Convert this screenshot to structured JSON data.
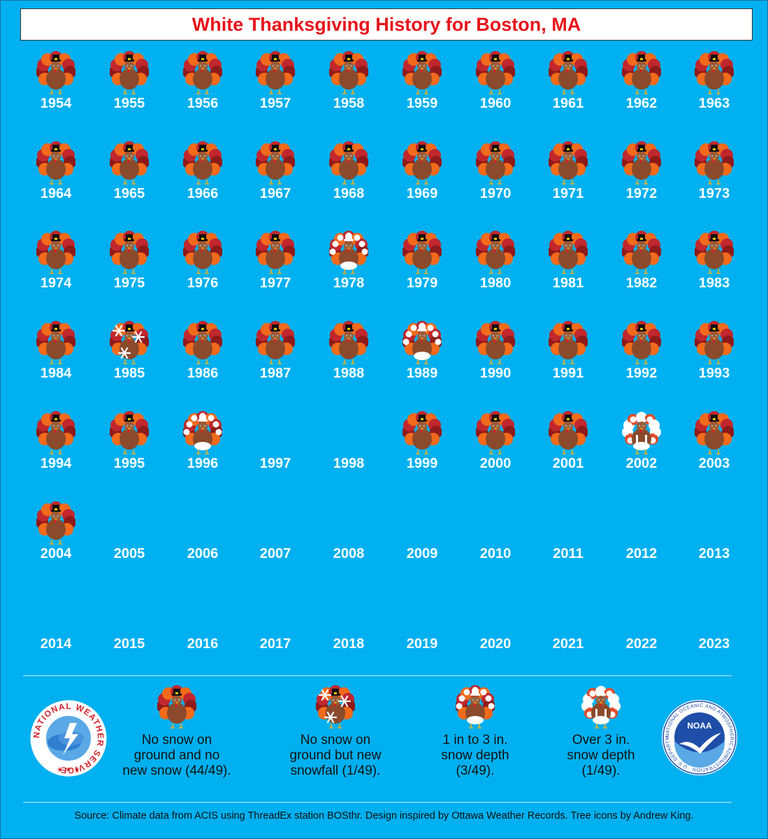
{
  "title": "White Thanksgiving History for Boston, MA",
  "colors": {
    "background": "#00b0f0",
    "title": "#e8131b",
    "year_label": "#ffffff",
    "turkey_body": "#8b4a2b",
    "feather_red": "#c1272d",
    "feather_orange": "#f26a1b",
    "snow": "#ffffff"
  },
  "chart_data": {
    "type": "table",
    "title": "White Thanksgiving History for Boston, MA",
    "categories": [
      {
        "key": "no_snow",
        "label": "No snow on ground and no new snow (44/49).",
        "count": 44,
        "total": 49
      },
      {
        "key": "new_snowfall",
        "label": "No snow on ground but new snowfall (1/49).",
        "count": 1,
        "total": 49
      },
      {
        "key": "depth_1_3",
        "label": "1 in to 3 in. snow depth (3/49).",
        "count": 3,
        "total": 49
      },
      {
        "key": "depth_over_3",
        "label": "Over 3 in. snow depth (1/49).",
        "count": 1,
        "total": 49
      }
    ],
    "years": [
      {
        "year": "1954",
        "status": "no_snow"
      },
      {
        "year": "1955",
        "status": "no_snow"
      },
      {
        "year": "1956",
        "status": "no_snow"
      },
      {
        "year": "1957",
        "status": "no_snow"
      },
      {
        "year": "1958",
        "status": "no_snow"
      },
      {
        "year": "1959",
        "status": "no_snow"
      },
      {
        "year": "1960",
        "status": "no_snow"
      },
      {
        "year": "1961",
        "status": "no_snow"
      },
      {
        "year": "1962",
        "status": "no_snow"
      },
      {
        "year": "1963",
        "status": "no_snow"
      },
      {
        "year": "1964",
        "status": "no_snow"
      },
      {
        "year": "1965",
        "status": "no_snow"
      },
      {
        "year": "1966",
        "status": "no_snow"
      },
      {
        "year": "1967",
        "status": "no_snow"
      },
      {
        "year": "1968",
        "status": "no_snow"
      },
      {
        "year": "1969",
        "status": "no_snow"
      },
      {
        "year": "1970",
        "status": "no_snow"
      },
      {
        "year": "1971",
        "status": "no_snow"
      },
      {
        "year": "1972",
        "status": "no_snow"
      },
      {
        "year": "1973",
        "status": "no_snow"
      },
      {
        "year": "1974",
        "status": "no_snow"
      },
      {
        "year": "1975",
        "status": "no_snow"
      },
      {
        "year": "1976",
        "status": "no_snow"
      },
      {
        "year": "1977",
        "status": "no_snow"
      },
      {
        "year": "1978",
        "status": "depth_1_3"
      },
      {
        "year": "1979",
        "status": "no_snow"
      },
      {
        "year": "1980",
        "status": "no_snow"
      },
      {
        "year": "1981",
        "status": "no_snow"
      },
      {
        "year": "1982",
        "status": "no_snow"
      },
      {
        "year": "1983",
        "status": "no_snow"
      },
      {
        "year": "1984",
        "status": "no_snow"
      },
      {
        "year": "1985",
        "status": "new_snowfall"
      },
      {
        "year": "1986",
        "status": "no_snow"
      },
      {
        "year": "1987",
        "status": "no_snow"
      },
      {
        "year": "1988",
        "status": "no_snow"
      },
      {
        "year": "1989",
        "status": "depth_1_3"
      },
      {
        "year": "1990",
        "status": "no_snow"
      },
      {
        "year": "1991",
        "status": "no_snow"
      },
      {
        "year": "1992",
        "status": "no_snow"
      },
      {
        "year": "1993",
        "status": "no_snow"
      },
      {
        "year": "1994",
        "status": "no_snow"
      },
      {
        "year": "1995",
        "status": "no_snow"
      },
      {
        "year": "1996",
        "status": "depth_1_3"
      },
      {
        "year": "1997",
        "status": "none"
      },
      {
        "year": "1998",
        "status": "none"
      },
      {
        "year": "1999",
        "status": "no_snow"
      },
      {
        "year": "2000",
        "status": "no_snow"
      },
      {
        "year": "2001",
        "status": "no_snow"
      },
      {
        "year": "2002",
        "status": "depth_over_3"
      },
      {
        "year": "2003",
        "status": "no_snow"
      },
      {
        "year": "2004",
        "status": "no_snow"
      },
      {
        "year": "2005",
        "status": "none"
      },
      {
        "year": "2006",
        "status": "none"
      },
      {
        "year": "2007",
        "status": "none"
      },
      {
        "year": "2008",
        "status": "none"
      },
      {
        "year": "2009",
        "status": "none"
      },
      {
        "year": "2010",
        "status": "none"
      },
      {
        "year": "2011",
        "status": "none"
      },
      {
        "year": "2012",
        "status": "none"
      },
      {
        "year": "2013",
        "status": "none"
      },
      {
        "year": "2014",
        "status": "none"
      },
      {
        "year": "2015",
        "status": "none"
      },
      {
        "year": "2016",
        "status": "none"
      },
      {
        "year": "2017",
        "status": "none"
      },
      {
        "year": "2018",
        "status": "none"
      },
      {
        "year": "2019",
        "status": "none"
      },
      {
        "year": "2020",
        "status": "none"
      },
      {
        "year": "2021",
        "status": "none"
      },
      {
        "year": "2022",
        "status": "none"
      },
      {
        "year": "2023",
        "status": "none"
      }
    ]
  },
  "legend": {
    "no_snow_line1": "No snow on",
    "no_snow_line2": "ground and no",
    "no_snow_line3": "new snow (44/49).",
    "new_snowfall_line1": "No snow on",
    "new_snowfall_line2": "ground but new",
    "new_snowfall_line3": "snowfall (1/49).",
    "depth_1_3_line1": "1 in to 3 in.",
    "depth_1_3_line2": "snow depth",
    "depth_1_3_line3": "(3/49).",
    "depth_over_3_line1": "Over 3 in.",
    "depth_over_3_line2": "snow depth",
    "depth_over_3_line3": "(1/49)."
  },
  "logos": {
    "nws_text": "NATIONAL WEATHER SERVICE",
    "noaa_center": "NOAA",
    "noaa_ring": "NATIONAL OCEANIC AND ATMOSPHERIC ADMINISTRATION · U.S. DEPARTMENT OF COMMERCE ·"
  },
  "source": "Source: Climate data from ACIS using ThreadEx station BOSthr. Design inspired by Ottawa Weather Records. Tree icons by Andrew King."
}
